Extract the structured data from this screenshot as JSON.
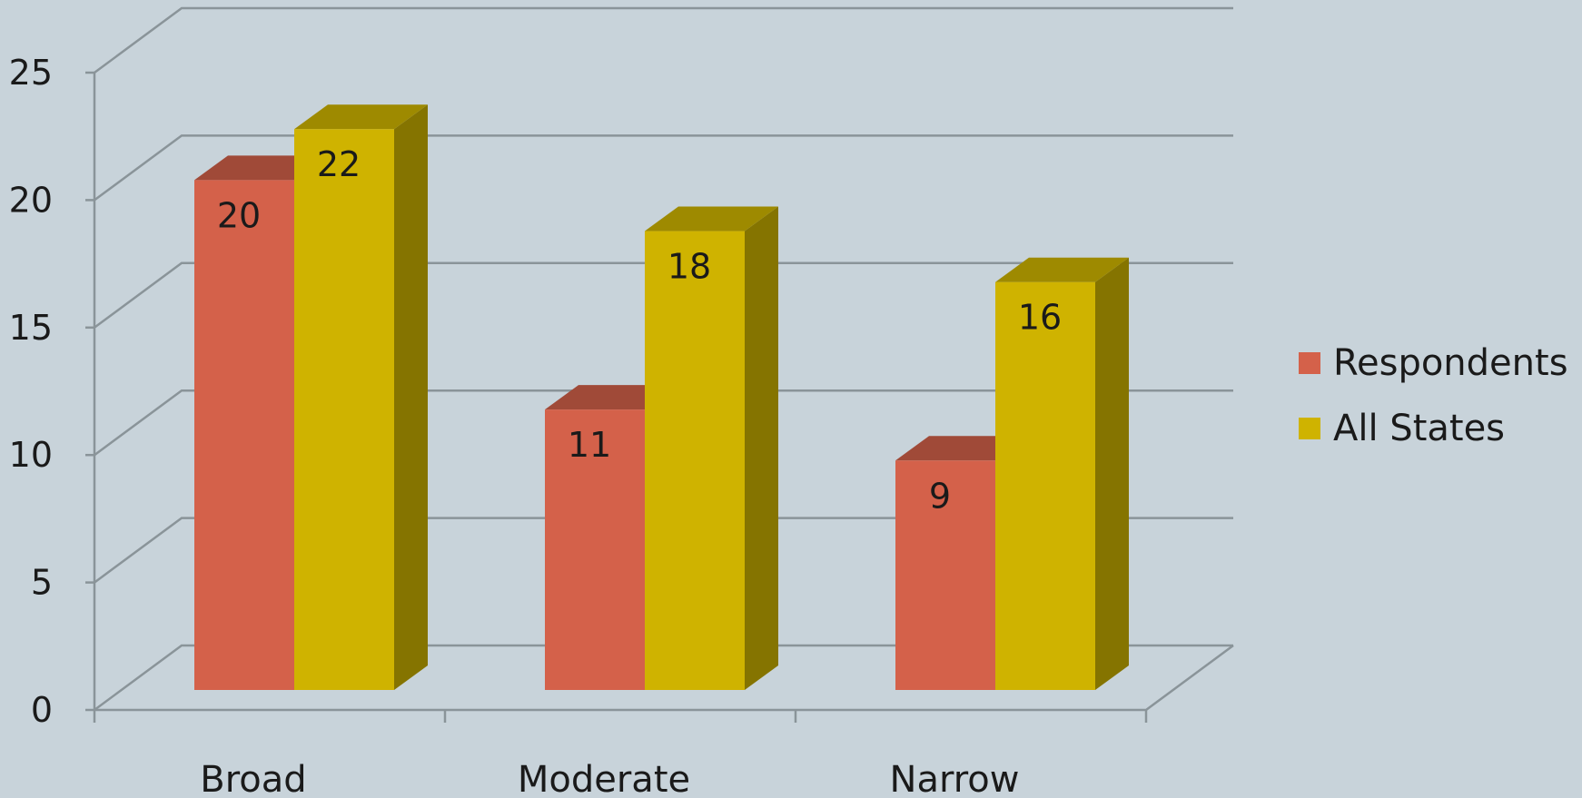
{
  "chart_data": {
    "type": "bar",
    "style": "3d-clustered-column",
    "categories": [
      "Broad",
      "Moderate",
      "Narrow"
    ],
    "series": [
      {
        "name": "Respondents",
        "values": [
          20,
          11,
          9
        ],
        "color": "#d4614a",
        "top_color": "#a04a38"
      },
      {
        "name": "All States",
        "values": [
          22,
          18,
          16
        ],
        "color": "#cfb300",
        "top_color": "#9e8a00",
        "side_color": "#857400"
      }
    ],
    "title": "",
    "xlabel": "",
    "ylabel": "",
    "ylim": [
      0,
      25
    ],
    "yticks": [
      "0",
      "5",
      "10",
      "15",
      "20",
      "25"
    ],
    "grid": true,
    "legend_position": "right",
    "colors": {
      "background": "#c8d3da",
      "gridline": "#8a9499",
      "text": "#1a1a1a"
    }
  }
}
